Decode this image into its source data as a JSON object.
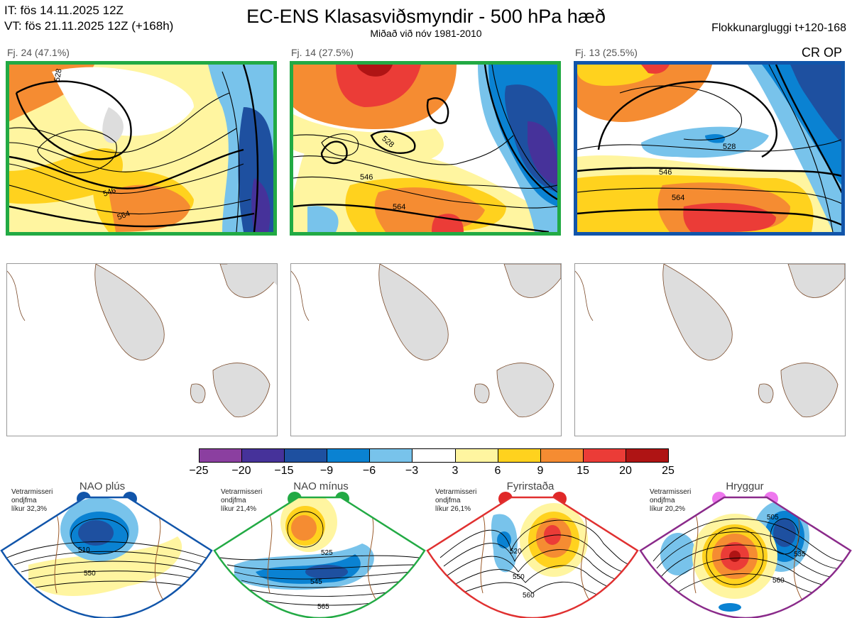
{
  "header": {
    "init_line": "IT: fös 14.11.2025 12Z",
    "valid_line": "VT: fös 21.11.2025 12Z  (+168h)",
    "title": "EC-ENS Klasasviðsmyndir - 500 hPa hæð",
    "subtitle": "Miðað við nóv 1981-2010",
    "window": "Flokkunargluggi t+120-168"
  },
  "clusters": [
    {
      "label": "Fj. 24 (47.1%)",
      "border_color": "#22aa44",
      "contours": [
        "528",
        "546",
        "564"
      ]
    },
    {
      "label": "Fj. 14 (27.5%)",
      "border_color": "#22aa44",
      "contours": [
        "528",
        "546",
        "564"
      ]
    },
    {
      "label": "Fj. 13 (25.5%)",
      "border_color": "#1155aa",
      "contours": [
        "528",
        "546",
        "564"
      ]
    }
  ],
  "tags": {
    "cr_op": "CR OP"
  },
  "colorbar": {
    "ticks": [
      "−25",
      "−20",
      "−15",
      "−9",
      "−6",
      "−3",
      "3",
      "6",
      "9",
      "15",
      "20",
      "25"
    ],
    "colors": [
      "#8b3fa0",
      "#46329a",
      "#1e50a0",
      "#0a82d2",
      "#78c3eb",
      "#ffffff",
      "#fff5a0",
      "#ffd21e",
      "#f58c32",
      "#eb3c37",
      "#af1414"
    ]
  },
  "regimes": [
    {
      "name": "NAO plús",
      "color": "#1155aa",
      "dot_color": "#1155aa",
      "note": [
        "Vetrarmisseri",
        "ondjfma",
        "líkur 32,3%"
      ],
      "labels": [
        "510",
        "550"
      ]
    },
    {
      "name": "NAO mínus",
      "color": "#22aa44",
      "dot_color": "#22aa44",
      "note": [
        "Vetrarmisseri",
        "ondjfma",
        "líkur 21,4%"
      ],
      "labels": [
        "525",
        "545",
        "565"
      ]
    },
    {
      "name": "Fyrirstaða",
      "color": "#e03030",
      "dot_color": "#e02828",
      "note": [
        "Vetrarmisseri",
        "ondjfma",
        "líkur 26,1%"
      ],
      "labels": [
        "520",
        "550",
        "560"
      ]
    },
    {
      "name": "Hryggur",
      "color": "#8a2a8a",
      "dot_color": "#ee77ee",
      "note": [
        "Vetrarmisseri",
        "ondjfma",
        "líkur 20,2%"
      ],
      "labels": [
        "505",
        "535",
        "560"
      ]
    }
  ]
}
